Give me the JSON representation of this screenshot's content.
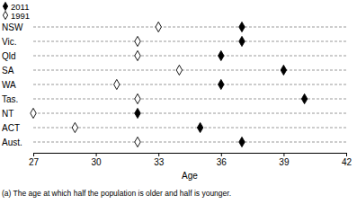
{
  "chart_data": {
    "type": "dot",
    "orientation": "horizontal",
    "categories": [
      "NSW",
      "Vic.",
      "Qld",
      "SA",
      "WA",
      "Tas.",
      "NT",
      "ACT",
      "Aust."
    ],
    "series": [
      {
        "name": "2011",
        "color": "#000000",
        "marker": "diamond",
        "values": [
          37,
          37,
          36,
          39,
          36,
          40,
          32,
          35,
          37
        ]
      },
      {
        "name": "1991",
        "color": "#000000",
        "marker": "diamond-open",
        "values": [
          33,
          32,
          32,
          34,
          31,
          32,
          27,
          29,
          32
        ]
      }
    ],
    "xlim": [
      27,
      42
    ],
    "xticks": [
      27,
      30,
      33,
      36,
      39,
      42
    ],
    "xlabel": "Age",
    "annotations": [
      "(a) The age at which half the population is older and half is younger."
    ],
    "grid": true,
    "legend": "top-left"
  }
}
